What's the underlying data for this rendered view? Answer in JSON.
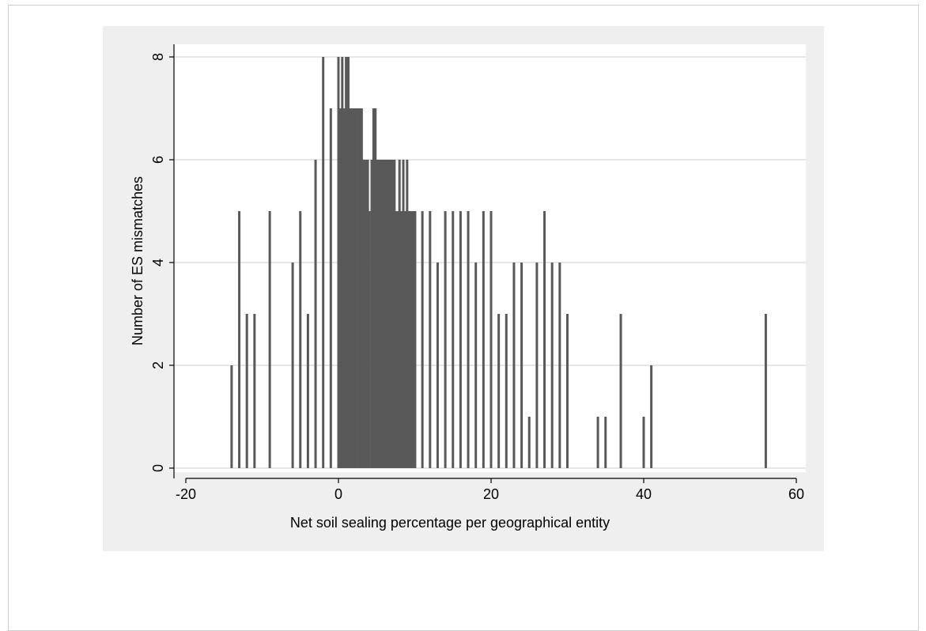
{
  "chart_data": {
    "type": "bar",
    "xlabel": "Net soil sealing percentage per geographical entity",
    "ylabel": "Number of ES mismatches",
    "xlim": [
      -20,
      60
    ],
    "ylim": [
      0,
      8
    ],
    "xticks": [
      "-20",
      "0",
      "20",
      "40",
      "60"
    ],
    "yticks": [
      "0",
      "2",
      "4",
      "6",
      "8"
    ],
    "grid": true,
    "bar_color": "#595959",
    "plot_background": "#ffffff",
    "outer_background": "#efefef",
    "bars": [
      {
        "x": -14,
        "y": 2
      },
      {
        "x": -13,
        "y": 5
      },
      {
        "x": -12,
        "y": 3
      },
      {
        "x": -11,
        "y": 3
      },
      {
        "x": -9,
        "y": 5
      },
      {
        "x": -6,
        "y": 4
      },
      {
        "x": -5,
        "y": 5
      },
      {
        "x": -4,
        "y": 3
      },
      {
        "x": -3,
        "y": 6
      },
      {
        "x": -2,
        "y": 8
      },
      {
        "x": -1,
        "y": 7
      },
      {
        "x": 0,
        "y": 8
      },
      {
        "x": 0.5,
        "y": 8
      },
      {
        "x": 1,
        "y": 8
      },
      {
        "x": 1.3,
        "y": 8
      },
      {
        "x": 2,
        "y": 7
      },
      {
        "x": 3,
        "y": 7
      },
      {
        "x": 3.2,
        "y": 6
      },
      {
        "x": 4,
        "y": 5
      },
      {
        "x": 4.6,
        "y": 7
      },
      {
        "x": 5,
        "y": 6
      },
      {
        "x": 6,
        "y": 6
      },
      {
        "x": 7,
        "y": 6
      },
      {
        "x": 7.5,
        "y": 5
      },
      {
        "x": 8,
        "y": 6
      },
      {
        "x": 8.5,
        "y": 6
      },
      {
        "x": 9,
        "y": 6
      },
      {
        "x": 9.5,
        "y": 5
      },
      {
        "x": 10,
        "y": 5
      },
      {
        "x": 11,
        "y": 5
      },
      {
        "x": 12,
        "y": 5
      },
      {
        "x": 13,
        "y": 4
      },
      {
        "x": 14,
        "y": 5
      },
      {
        "x": 15,
        "y": 5
      },
      {
        "x": 16,
        "y": 5
      },
      {
        "x": 17,
        "y": 5
      },
      {
        "x": 18,
        "y": 4
      },
      {
        "x": 19,
        "y": 5
      },
      {
        "x": 20,
        "y": 5
      },
      {
        "x": 21,
        "y": 3
      },
      {
        "x": 22,
        "y": 3
      },
      {
        "x": 23,
        "y": 4
      },
      {
        "x": 24,
        "y": 4
      },
      {
        "x": 25,
        "y": 1
      },
      {
        "x": 26,
        "y": 4
      },
      {
        "x": 27,
        "y": 5
      },
      {
        "x": 28,
        "y": 4
      },
      {
        "x": 29,
        "y": 4
      },
      {
        "x": 30,
        "y": 3
      },
      {
        "x": 34,
        "y": 1
      },
      {
        "x": 35,
        "y": 1
      },
      {
        "x": 37,
        "y": 3
      },
      {
        "x": 40,
        "y": 1
      },
      {
        "x": 41,
        "y": 2
      },
      {
        "x": 56,
        "y": 3
      }
    ],
    "filled_regions": [
      {
        "x_from": 0,
        "x_to": 10,
        "segments": [
          {
            "x_from": 0,
            "x_to": 3.2,
            "y": 7
          },
          {
            "x_from": 3.2,
            "x_to": 4.0,
            "y": 6
          },
          {
            "x_from": 4.0,
            "x_to": 4.2,
            "y": 5
          },
          {
            "x_from": 4.2,
            "x_to": 4.5,
            "y": 6
          },
          {
            "x_from": 4.5,
            "x_to": 5.0,
            "y": 7
          },
          {
            "x_from": 5.0,
            "x_to": 7.5,
            "y": 6
          },
          {
            "x_from": 7.5,
            "x_to": 10.2,
            "y": 5
          }
        ]
      }
    ]
  }
}
